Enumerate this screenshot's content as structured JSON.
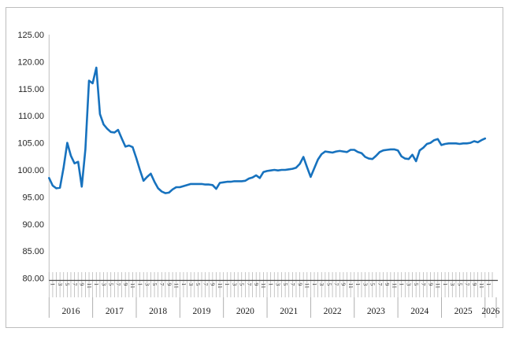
{
  "chart_data": {
    "type": "line",
    "title": "",
    "xlabel": "",
    "ylabel": "",
    "legend": null,
    "grid": false,
    "line_color": "#1772be",
    "axis_color": "#4d4d4d",
    "tick_color": "#a6a6a6",
    "ylim": [
      80,
      125
    ],
    "y_tick_labels": [
      "125.00",
      "120.00",
      "115.00",
      "110.00",
      "105.00",
      "100.00",
      "95.00",
      "90.00",
      "85.00",
      "80.00"
    ],
    "month_tick_labels_per_year": [
      "1",
      "3",
      "5",
      "7",
      "9",
      "11"
    ],
    "year_labels": [
      "2016",
      "2017",
      "2018",
      "2019",
      "2020",
      "2021",
      "2022",
      "2023",
      "2024",
      "2025",
      "2026"
    ],
    "start_month": "2016-01",
    "end_month": "2026-01",
    "values": [
      98.5,
      97.1,
      96.6,
      96.7,
      100.5,
      105.0,
      102.6,
      101.2,
      101.5,
      96.9,
      103.8,
      116.5,
      116.0,
      118.9,
      110.3,
      108.4,
      107.6,
      107.0,
      106.9,
      107.4,
      105.8,
      104.3,
      104.5,
      104.2,
      102.2,
      100.0,
      98.0,
      98.7,
      99.3,
      97.8,
      96.6,
      96.0,
      95.7,
      95.8,
      96.4,
      96.8,
      96.8,
      97.0,
      97.2,
      97.4,
      97.4,
      97.4,
      97.4,
      97.3,
      97.3,
      97.2,
      96.5,
      97.6,
      97.7,
      97.8,
      97.8,
      97.9,
      97.9,
      97.9,
      98.0,
      98.4,
      98.6,
      99.0,
      98.5,
      99.6,
      99.8,
      99.9,
      100.0,
      99.9,
      100.0,
      100.0,
      100.1,
      100.2,
      100.4,
      101.1,
      102.4,
      100.5,
      98.7,
      100.3,
      101.9,
      102.9,
      103.4,
      103.3,
      103.2,
      103.4,
      103.5,
      103.4,
      103.3,
      103.7,
      103.7,
      103.3,
      103.1,
      102.4,
      102.1,
      102.0,
      102.6,
      103.3,
      103.6,
      103.7,
      103.8,
      103.8,
      103.6,
      102.5,
      102.1,
      102.0,
      102.8,
      101.6,
      103.6,
      104.1,
      104.8,
      105.0,
      105.5,
      105.7,
      104.6,
      104.8,
      104.9,
      104.9,
      104.9,
      104.8,
      104.9,
      104.9,
      105.0,
      105.3,
      105.1,
      105.5,
      105.8
    ]
  }
}
